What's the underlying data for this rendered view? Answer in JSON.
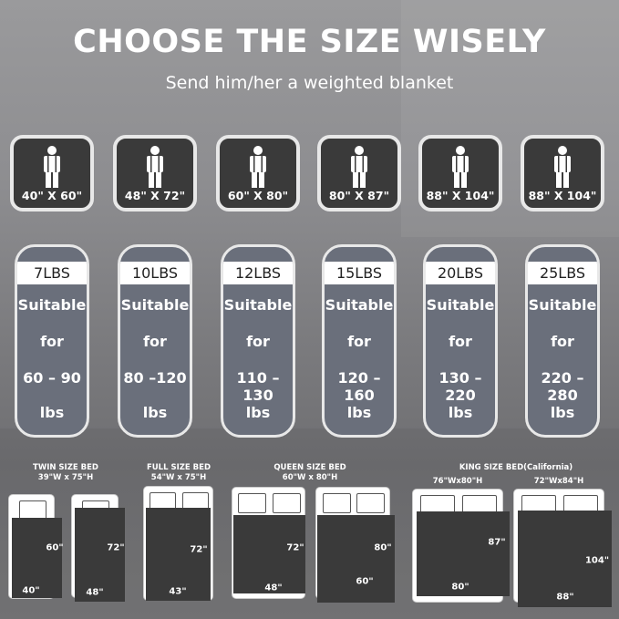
{
  "title": "CHOOSE THE SIZE WISELY",
  "subtitle": "Send him/her a weighted blanket",
  "icon": "person-icon",
  "colors": {
    "tile": "#3a3a3a",
    "pill": "#6a6f7b",
    "sheet": "#3a3a3a"
  },
  "options": [
    {
      "size": "40\" X 60\"",
      "weight": "7LBS",
      "l1": "Suitable",
      "l2": "for",
      "range": "60 – 90",
      "unit": "lbs"
    },
    {
      "size": "48\" X 72\"",
      "weight": "10LBS",
      "l1": "Suitable",
      "l2": "for",
      "range": "80 –120",
      "unit": "lbs"
    },
    {
      "size": "60\" X 80\"",
      "weight": "12LBS",
      "l1": "Suitable",
      "l2": "for",
      "range": "110 –130",
      "unit": "lbs"
    },
    {
      "size": "80\" X 87\"",
      "weight": "15LBS",
      "l1": "Suitable",
      "l2": "for",
      "range": "120 –160",
      "unit": "lbs"
    },
    {
      "size": "88\" X 104\"",
      "weight": "20LBS",
      "l1": "Suitable",
      "l2": "for",
      "range": "130 – 220",
      "unit": "lbs"
    },
    {
      "size": "88\" X 104\"",
      "weight": "25LBS",
      "l1": "Suitable",
      "l2": "for",
      "range": "220 – 280",
      "unit": "lbs"
    }
  ],
  "bed_types": [
    {
      "name": "TWIN SIZE BED",
      "dims": "39\"W x 75\"H"
    },
    {
      "name": "FULL SIZE BED",
      "dims": "54\"W x 75\"H"
    },
    {
      "name": "QUEEN SIZE BED",
      "dims": "60\"W x 80\"H"
    },
    {
      "name": "KING SIZE BED(California)",
      "dims": "76\"Wx80\"H",
      "dims2": "72\"Wx84\"H"
    }
  ],
  "beds": [
    {
      "h": "60\"",
      "w": "40\""
    },
    {
      "h": "72\"",
      "w": "48\""
    },
    {
      "h": "72\"",
      "w": "43\""
    },
    {
      "h": "72\"",
      "w": "48\""
    },
    {
      "h": "80\"",
      "w": "60\""
    },
    {
      "h": "87\"",
      "w": "80\""
    },
    {
      "h": "104\"",
      "w": "88\""
    }
  ]
}
